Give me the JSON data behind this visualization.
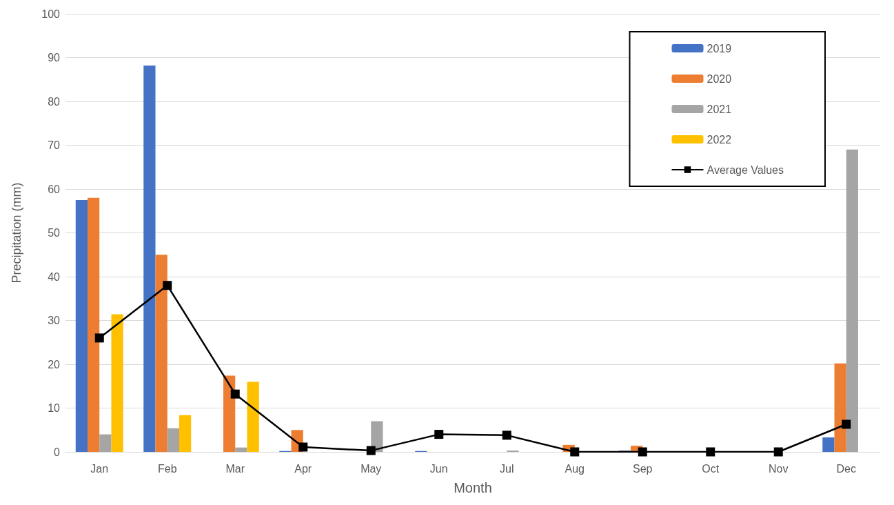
{
  "chart_data": {
    "type": "bar",
    "xlabel": "Month",
    "ylabel": "Precipitation (mm)",
    "categories": [
      "Jan",
      "Feb",
      "Mar",
      "Apr",
      "May",
      "Jun",
      "Jul",
      "Aug",
      "Sep",
      "Oct",
      "Nov",
      "Dec"
    ],
    "series": [
      {
        "name": "2019",
        "color": "#4472c4",
        "values": [
          57.5,
          88.2,
          0,
          0.2,
          0,
          0.2,
          0,
          0,
          0.3,
          0,
          0,
          3.3
        ]
      },
      {
        "name": "2020",
        "color": "#ed7d31",
        "values": [
          58,
          45,
          17.4,
          5,
          0,
          0,
          0,
          1.6,
          1.4,
          0,
          0,
          20.2
        ]
      },
      {
        "name": "2021",
        "color": "#a5a5a5",
        "values": [
          4,
          5.4,
          1,
          0,
          7,
          0,
          0.3,
          0,
          0,
          0,
          0,
          69
        ]
      },
      {
        "name": "2022",
        "color": "#ffc000",
        "values": [
          31.4,
          8.4,
          16,
          0,
          0,
          0,
          0,
          0,
          0,
          0,
          0,
          0
        ]
      },
      {
        "name": "Average Values",
        "type": "line",
        "color": "#000000",
        "marker": "square",
        "values": [
          26,
          38,
          13.2,
          1.1,
          0.3,
          4,
          3.8,
          0,
          0,
          0,
          0,
          6.3
        ]
      }
    ],
    "ylim": [
      0,
      100
    ],
    "yticks": [
      0,
      10,
      20,
      30,
      40,
      50,
      60,
      70,
      80,
      90,
      100
    ],
    "grid": "y",
    "legend": "top right"
  }
}
